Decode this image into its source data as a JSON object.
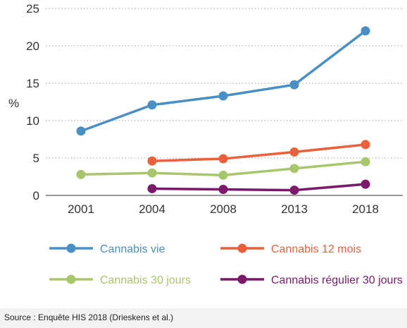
{
  "chart_data": {
    "type": "line",
    "categories": [
      "2001",
      "2004",
      "2008",
      "2013",
      "2018"
    ],
    "ylabel": "%",
    "ylim": [
      0,
      25
    ],
    "yticks": [
      0,
      5,
      10,
      15,
      20,
      25
    ],
    "grid": "horizontal-dotted",
    "legend_position": "bottom",
    "series": [
      {
        "name": "Cannabis vie",
        "color": "#4a8fc3",
        "values": [
          8.6,
          12.1,
          13.3,
          14.8,
          22.0
        ]
      },
      {
        "name": "Cannabis 12 mois",
        "color": "#e8603c",
        "values": [
          null,
          4.6,
          4.9,
          5.8,
          6.8
        ]
      },
      {
        "name": "Cannabis 30 jours",
        "color": "#a8c66c",
        "values": [
          2.8,
          3.0,
          2.7,
          3.6,
          4.5
        ]
      },
      {
        "name": "Cannabis régulier 30 jours",
        "color": "#7b1a6b",
        "values": [
          null,
          0.9,
          0.8,
          0.7,
          1.5
        ]
      }
    ]
  },
  "source": "Source : Enquête HIS 2018 (Drieskens et al.)"
}
